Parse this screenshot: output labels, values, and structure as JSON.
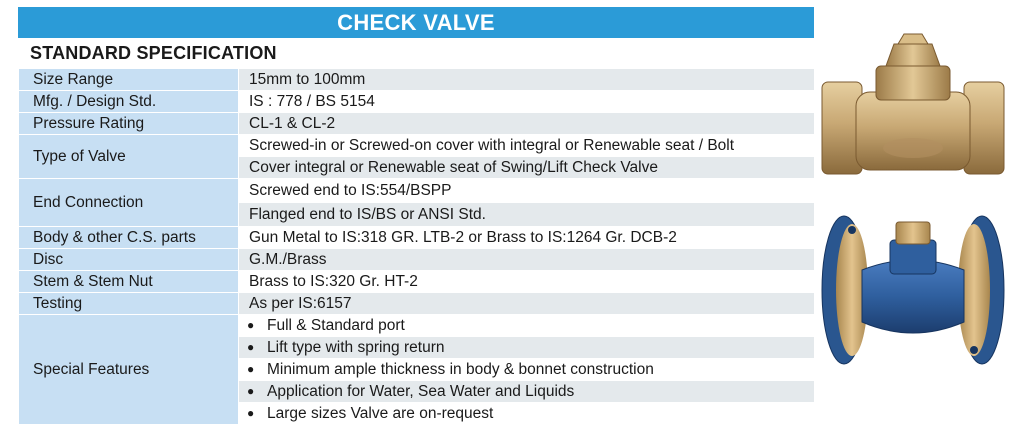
{
  "banner": {
    "title": "CHECK VALVE"
  },
  "section_heading": "STANDARD SPECIFICATION",
  "specs": {
    "size_range": {
      "label": "Size Range",
      "value": "15mm to 100mm"
    },
    "mfg_std": {
      "label": "Mfg. / Design Std.",
      "value": "IS : 778 / BS 5154"
    },
    "pressure": {
      "label": "Pressure Rating",
      "value": "CL-1 & CL-2"
    },
    "valve_type": {
      "label": "Type of Valve",
      "values": [
        "Screwed-in or Screwed-on cover with integral or Renewable seat / Bolt",
        "Cover integral or Renewable seat of Swing/Lift Check Valve"
      ]
    },
    "end_connection": {
      "label": "End Connection",
      "values": [
        "Screwed end to IS:554/BSPP",
        "Flanged end to IS/BS or ANSI Std."
      ]
    },
    "body_parts": {
      "label": "Body & other C.S. parts",
      "value": "Gun Metal to IS:318 GR. LTB-2 or Brass to IS:1264 Gr. DCB-2"
    },
    "disc": {
      "label": "Disc",
      "value": "G.M./Brass"
    },
    "stem": {
      "label": "Stem & Stem Nut",
      "value": "Brass to IS:320 Gr. HT-2"
    },
    "testing": {
      "label": "Testing",
      "value": "As per IS:6157"
    },
    "special": {
      "label": "Special Features",
      "bullet_glyph": "●",
      "items": [
        "Full & Standard port",
        "Lift type with spring return",
        "Minimum ample thickness in body & bonnet construction",
        "Application for Water, Sea Water and Liquids",
        "Large sizes Valve are on-request"
      ]
    }
  },
  "images": [
    {
      "name": "bronze-screwed-check-valve",
      "colors": {
        "body": "#c8a874",
        "shade": "#8a6a3c"
      }
    },
    {
      "name": "flanged-blue-check-valve",
      "colors": {
        "body": "#2f5f9e",
        "flange": "#c9a56a"
      }
    }
  ],
  "colors": {
    "banner": "#2b9bd7",
    "label_cell": "#c7dff3",
    "value_cell": "#e4e9ec"
  }
}
